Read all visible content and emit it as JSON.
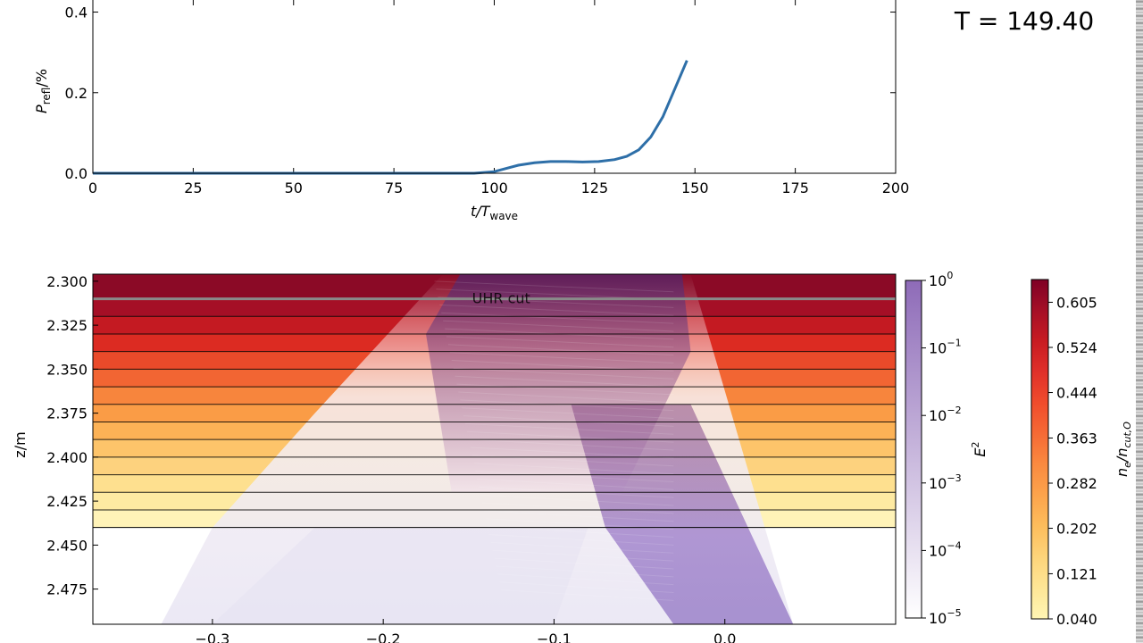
{
  "time_label": "T = 149.40",
  "chart_data": [
    {
      "type": "line",
      "title": "",
      "xlabel_main": "t/T",
      "xlabel_sub": "wave",
      "ylabel_main": "P",
      "ylabel_sub": "refl",
      "ylabel_unit": "/%",
      "xlim": [
        0,
        200
      ],
      "ylim": [
        0,
        0.43
      ],
      "xticks": [
        0,
        25,
        50,
        75,
        100,
        125,
        150,
        175,
        200
      ],
      "yticks": [
        0.0,
        0.2,
        0.4
      ],
      "ytick_labels": [
        "0.0",
        "0.2",
        "0.4"
      ],
      "color": "#2e6fa8",
      "series": [
        {
          "x": [
            0,
            20,
            40,
            60,
            80,
            95,
            100,
            103,
            106,
            110,
            114,
            118,
            122,
            126,
            130,
            133,
            136,
            139,
            142,
            145,
            148
          ],
          "y": [
            0.0,
            0.0,
            0.0,
            0.0,
            0.0,
            0.0,
            0.004,
            0.012,
            0.02,
            0.026,
            0.029,
            0.029,
            0.028,
            0.029,
            0.034,
            0.042,
            0.058,
            0.09,
            0.14,
            0.21,
            0.28
          ]
        }
      ]
    },
    {
      "type": "heatmap",
      "ylabel": "z/m",
      "xlim": [
        -0.37,
        0.1
      ],
      "ylim": [
        2.296,
        2.495
      ],
      "xticks": [
        -0.3,
        -0.2,
        -0.1,
        0.0
      ],
      "xtick_labels": [
        "−0.3",
        "−0.2",
        "−0.1",
        "0.0"
      ],
      "yticks": [
        2.3,
        2.325,
        2.35,
        2.375,
        2.4,
        2.425,
        2.45,
        2.475
      ],
      "ytick_labels": [
        "2.300",
        "2.325",
        "2.350",
        "2.375",
        "2.400",
        "2.425",
        "2.450",
        "2.475"
      ],
      "annotation": "UHR cut",
      "cut_z": 2.31,
      "plasma_edge_z": 2.44,
      "density_bands": [
        {
          "z0": 2.296,
          "z1": 2.31,
          "color": "#8b0a26"
        },
        {
          "z0": 2.31,
          "z1": 2.32,
          "color": "#a50f26"
        },
        {
          "z0": 2.32,
          "z1": 2.33,
          "color": "#c41a22"
        },
        {
          "z0": 2.33,
          "z1": 2.34,
          "color": "#dc2b22"
        },
        {
          "z0": 2.34,
          "z1": 2.35,
          "color": "#ea4a2a"
        },
        {
          "z0": 2.35,
          "z1": 2.36,
          "color": "#f26533"
        },
        {
          "z0": 2.36,
          "z1": 2.37,
          "color": "#f7853d"
        },
        {
          "z0": 2.37,
          "z1": 2.38,
          "color": "#fa9c46"
        },
        {
          "z0": 2.38,
          "z1": 2.39,
          "color": "#fcb256"
        },
        {
          "z0": 2.39,
          "z1": 2.4,
          "color": "#fdc46a"
        },
        {
          "z0": 2.4,
          "z1": 2.41,
          "color": "#fdd27e"
        },
        {
          "z0": 2.41,
          "z1": 2.42,
          "color": "#fee08f"
        },
        {
          "z0": 2.42,
          "z1": 2.43,
          "color": "#feeaa2"
        },
        {
          "z0": 2.43,
          "z1": 2.44,
          "color": "#fff3b8"
        }
      ],
      "beam": {
        "in_x_top": [
          -0.155,
          -0.025
        ],
        "turn_z": 2.34,
        "out_x_bottom": [
          -0.03,
          0.04
        ],
        "left_edge_x_bottom": -0.33
      },
      "colorbars": [
        {
          "name": "E2",
          "label_main": "E",
          "label_sup": "2",
          "scale": "log",
          "ticks": [
            "10",
            "10",
            "10",
            "10",
            "10",
            "10"
          ],
          "tick_exps": [
            "0",
            "−1",
            "−2",
            "−3",
            "−4",
            "−5"
          ],
          "color_top": "#8e6bb8",
          "color_bottom": "#ffffff"
        },
        {
          "name": "density",
          "label": "n_e/n_cut,O",
          "label_parts": [
            "n",
            "e",
            "/n",
            "cut,O"
          ],
          "ticks": [
            "0.605",
            "0.524",
            "0.444",
            "0.363",
            "0.282",
            "0.202",
            "0.121",
            "0.040"
          ],
          "colors": [
            "#7f0025",
            "#a50f26",
            "#c81c22",
            "#e0302a",
            "#f04c2c",
            "#f66a35",
            "#fa8a40",
            "#fca44c",
            "#fdbd5c",
            "#fdd47a",
            "#fee696",
            "#fff6b4"
          ]
        }
      ]
    }
  ]
}
